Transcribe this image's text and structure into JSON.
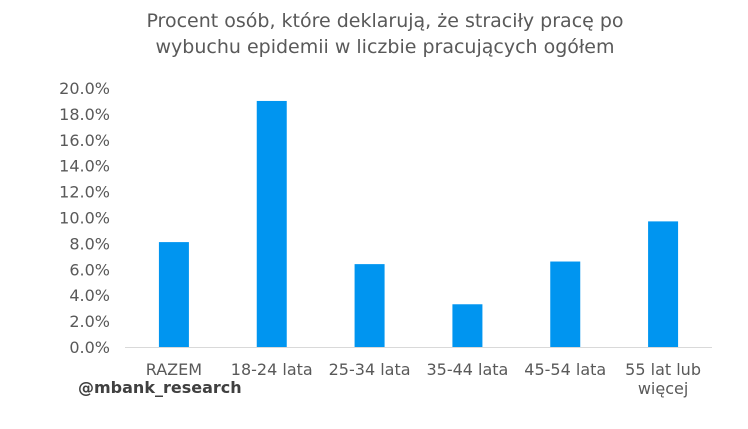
{
  "chart_data": {
    "type": "bar",
    "title_lines": [
      "Procent osób, które deklarują, że straciły pracę po",
      "wybuchu epidemii w liczbie pracujących ogółem"
    ],
    "categories": [
      [
        "RAZEM"
      ],
      [
        "18-24 lata"
      ],
      [
        "25-34 lata"
      ],
      [
        "35-44 lata"
      ],
      [
        "45-54 lata"
      ],
      [
        "55 lat lub",
        "więcej"
      ]
    ],
    "values": [
      8.1,
      19.0,
      6.4,
      3.3,
      6.6,
      9.7
    ],
    "ylim": [
      0,
      20
    ],
    "yticks": [
      "0.0%",
      "2.0%",
      "4.0%",
      "6.0%",
      "8.0%",
      "10.0%",
      "12.0%",
      "14.0%",
      "16.0%",
      "18.0%",
      "20.0%"
    ],
    "bar_color": "#0095f0",
    "grid": false
  },
  "source_label": "@mbank_research"
}
